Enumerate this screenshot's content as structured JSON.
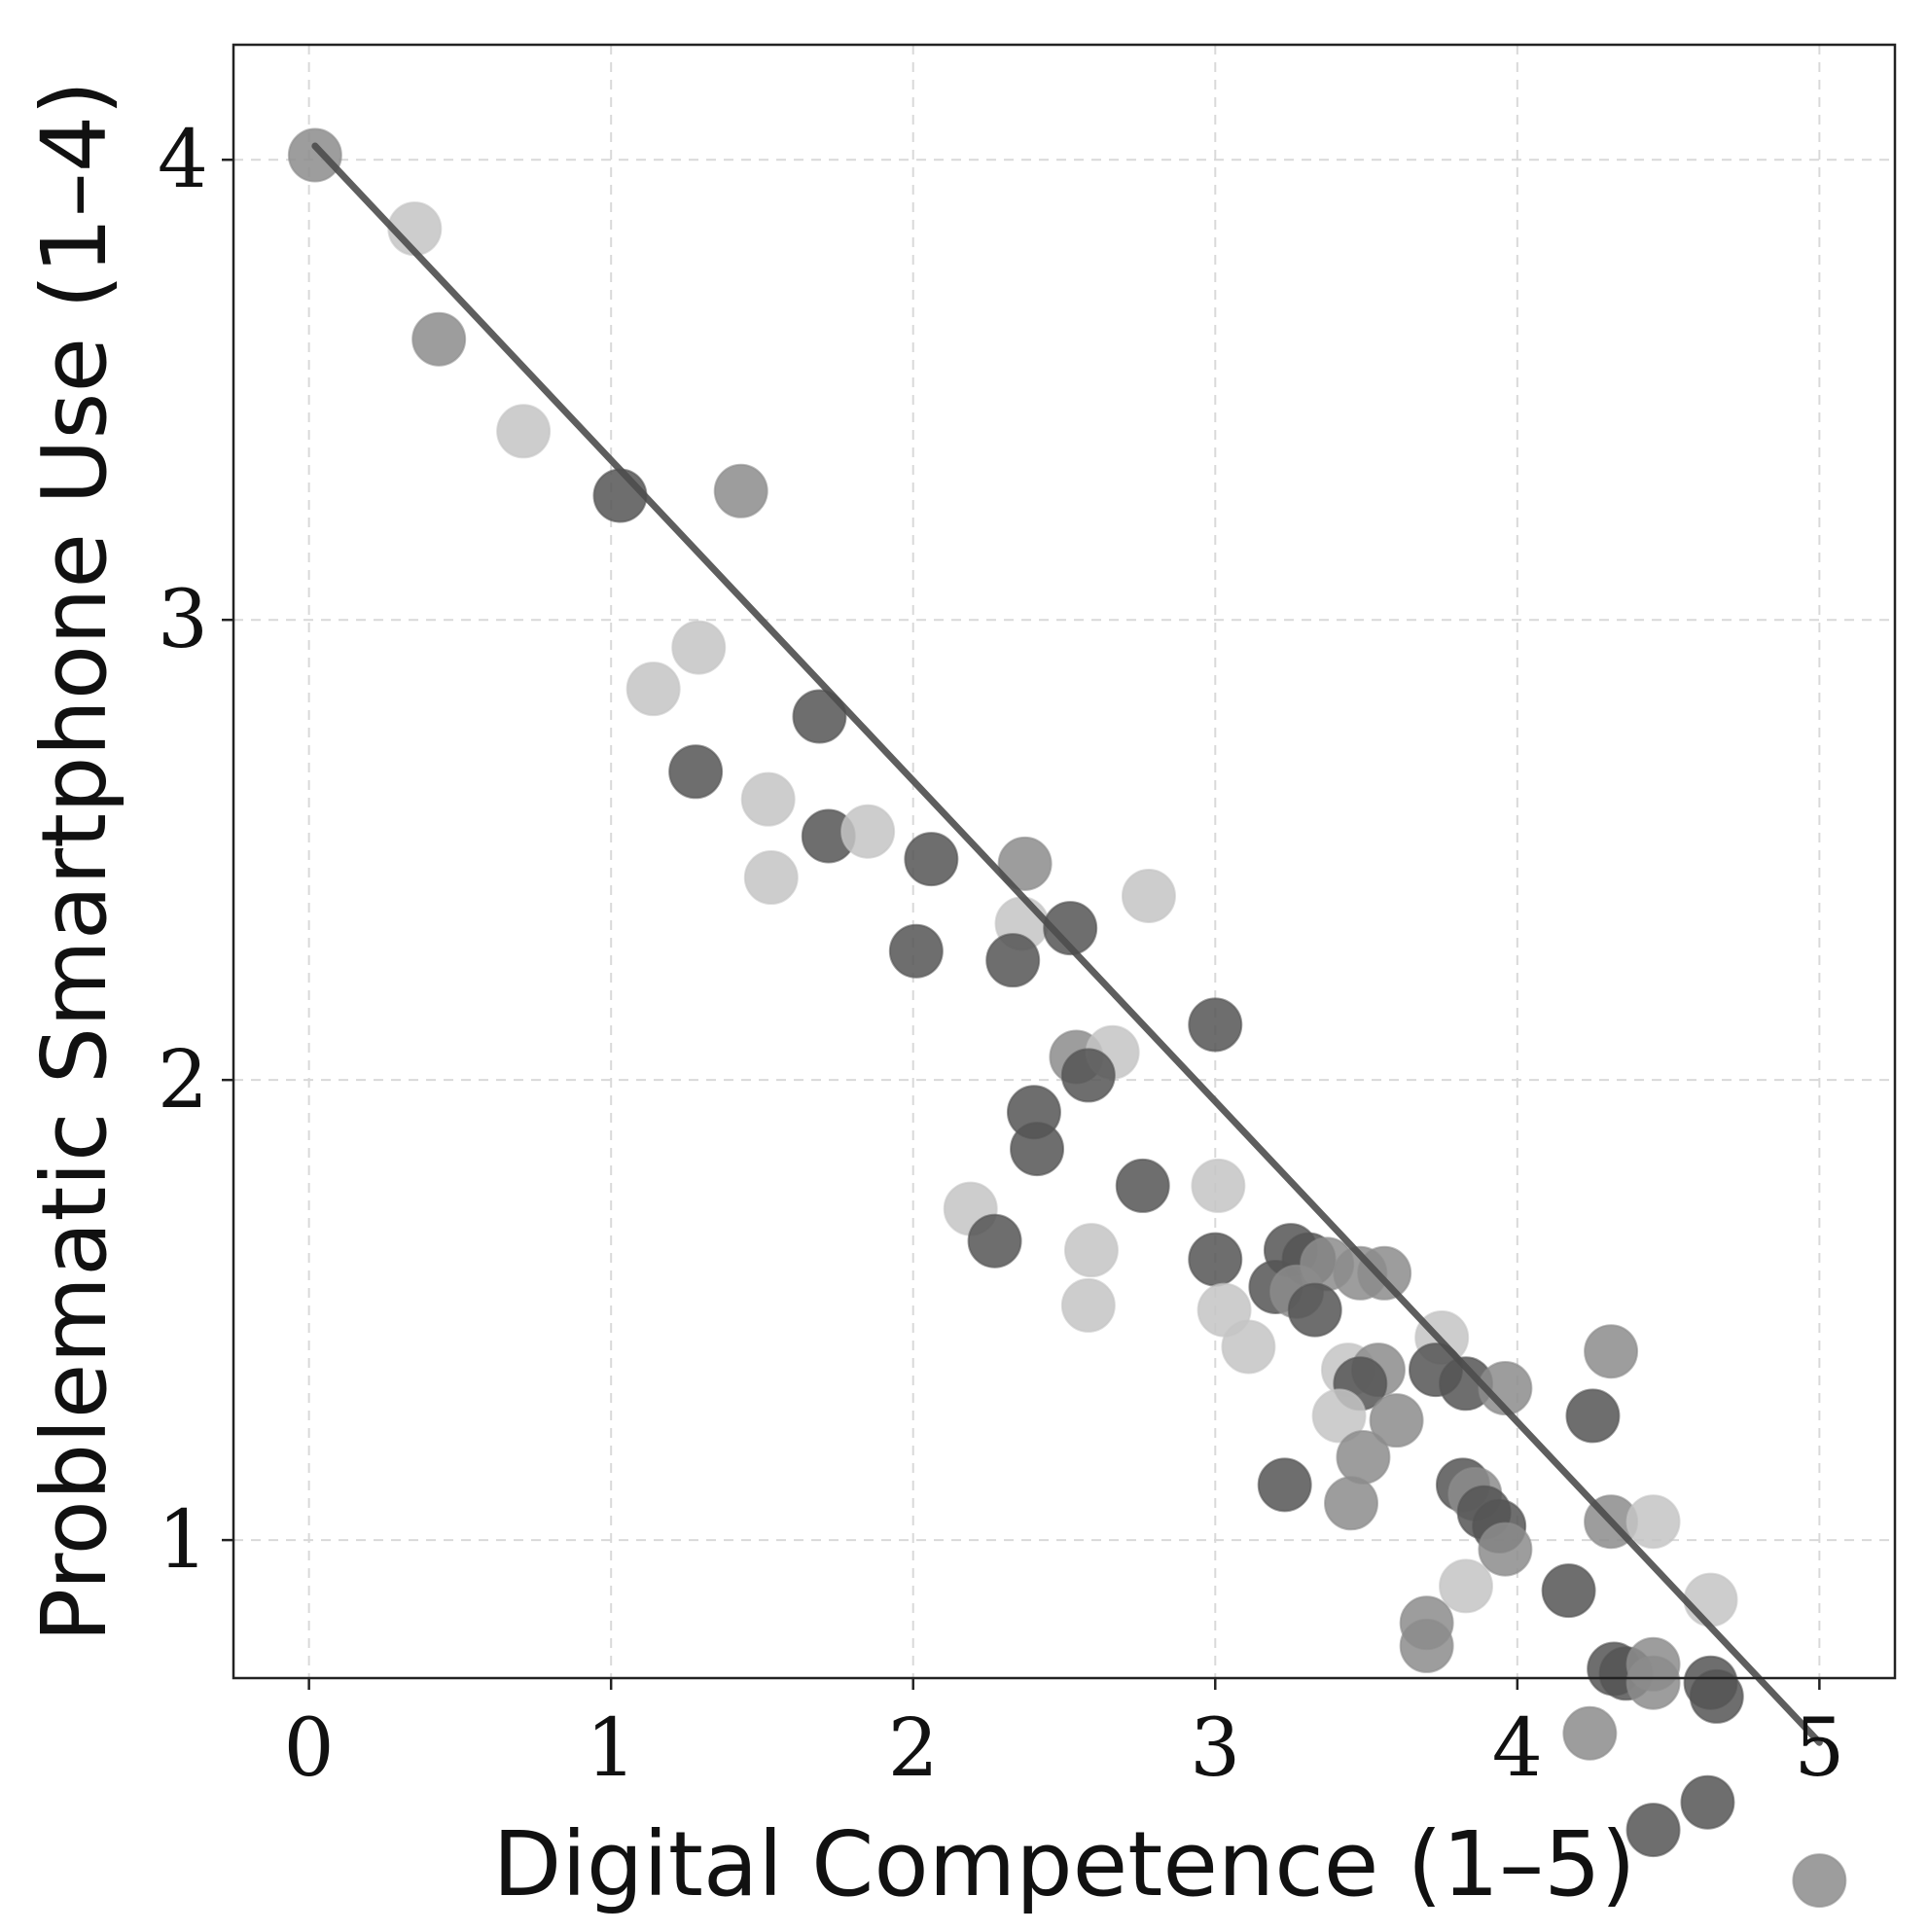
{
  "chart_data": {
    "type": "scatter",
    "title": "",
    "xlabel": "Digital Competence (1–5)",
    "ylabel": "Problematic Smartphone Use (1–4)",
    "xlim": [
      -0.25,
      5.25
    ],
    "ylim": [
      0.7,
      4.25
    ],
    "x_ticks": [
      {
        "value": 0,
        "label": "0"
      },
      {
        "value": 1,
        "label": "1"
      },
      {
        "value": 2,
        "label": "2"
      },
      {
        "value": 3,
        "label": "3"
      },
      {
        "value": 4,
        "label": "4"
      },
      {
        "value": 5,
        "label": "5"
      }
    ],
    "y_ticks": [
      {
        "value": 1,
        "label": "1"
      },
      {
        "value": 2,
        "label": "2"
      },
      {
        "value": 3,
        "label": "3"
      },
      {
        "value": 4,
        "label": "4"
      }
    ],
    "grid": true,
    "colors": {
      "dark": "#555555",
      "mid": "#8c8c8c",
      "light": "#c4c4c4",
      "trend": "#4d4d4d",
      "grid": "#d9d9d9",
      "frame": "#222222"
    },
    "trend_line": {
      "x": [
        0.02,
        5.0
      ],
      "y": [
        4.03,
        0.56
      ]
    },
    "points": [
      {
        "x": 0.02,
        "y": 4.01,
        "shade": "mid"
      },
      {
        "x": 0.35,
        "y": 3.85,
        "shade": "light"
      },
      {
        "x": 0.43,
        "y": 3.61,
        "shade": "mid"
      },
      {
        "x": 0.71,
        "y": 3.41,
        "shade": "light"
      },
      {
        "x": 1.03,
        "y": 3.27,
        "shade": "dark"
      },
      {
        "x": 1.43,
        "y": 3.28,
        "shade": "mid"
      },
      {
        "x": 1.29,
        "y": 2.94,
        "shade": "light"
      },
      {
        "x": 1.14,
        "y": 2.85,
        "shade": "light"
      },
      {
        "x": 1.69,
        "y": 2.79,
        "shade": "dark"
      },
      {
        "x": 1.28,
        "y": 2.67,
        "shade": "dark"
      },
      {
        "x": 1.52,
        "y": 2.61,
        "shade": "light"
      },
      {
        "x": 1.72,
        "y": 2.53,
        "shade": "dark"
      },
      {
        "x": 1.85,
        "y": 2.54,
        "shade": "light"
      },
      {
        "x": 1.53,
        "y": 2.44,
        "shade": "light"
      },
      {
        "x": 2.06,
        "y": 2.48,
        "shade": "dark"
      },
      {
        "x": 2.37,
        "y": 2.47,
        "shade": "mid"
      },
      {
        "x": 2.36,
        "y": 2.34,
        "shade": "light"
      },
      {
        "x": 2.52,
        "y": 2.33,
        "shade": "dark"
      },
      {
        "x": 2.78,
        "y": 2.4,
        "shade": "light"
      },
      {
        "x": 2.01,
        "y": 2.28,
        "shade": "dark"
      },
      {
        "x": 2.33,
        "y": 2.26,
        "shade": "dark"
      },
      {
        "x": 2.54,
        "y": 2.05,
        "shade": "mid"
      },
      {
        "x": 2.66,
        "y": 2.06,
        "shade": "light"
      },
      {
        "x": 2.58,
        "y": 2.01,
        "shade": "dark"
      },
      {
        "x": 3.0,
        "y": 2.12,
        "shade": "dark"
      },
      {
        "x": 2.4,
        "y": 1.93,
        "shade": "dark"
      },
      {
        "x": 2.41,
        "y": 1.85,
        "shade": "dark"
      },
      {
        "x": 2.76,
        "y": 1.77,
        "shade": "dark"
      },
      {
        "x": 3.01,
        "y": 1.77,
        "shade": "light"
      },
      {
        "x": 2.19,
        "y": 1.72,
        "shade": "light"
      },
      {
        "x": 2.27,
        "y": 1.65,
        "shade": "dark"
      },
      {
        "x": 2.59,
        "y": 1.63,
        "shade": "light"
      },
      {
        "x": 3.0,
        "y": 1.61,
        "shade": "dark"
      },
      {
        "x": 3.25,
        "y": 1.63,
        "shade": "dark"
      },
      {
        "x": 3.31,
        "y": 1.61,
        "shade": "dark"
      },
      {
        "x": 3.37,
        "y": 1.6,
        "shade": "mid"
      },
      {
        "x": 3.48,
        "y": 1.58,
        "shade": "mid"
      },
      {
        "x": 3.56,
        "y": 1.58,
        "shade": "mid"
      },
      {
        "x": 3.2,
        "y": 1.55,
        "shade": "dark"
      },
      {
        "x": 3.27,
        "y": 1.54,
        "shade": "mid"
      },
      {
        "x": 3.33,
        "y": 1.5,
        "shade": "dark"
      },
      {
        "x": 2.58,
        "y": 1.51,
        "shade": "light"
      },
      {
        "x": 3.03,
        "y": 1.5,
        "shade": "light"
      },
      {
        "x": 3.11,
        "y": 1.42,
        "shade": "light"
      },
      {
        "x": 3.75,
        "y": 1.44,
        "shade": "light"
      },
      {
        "x": 4.31,
        "y": 1.41,
        "shade": "mid"
      },
      {
        "x": 3.44,
        "y": 1.37,
        "shade": "light"
      },
      {
        "x": 3.54,
        "y": 1.37,
        "shade": "mid"
      },
      {
        "x": 3.48,
        "y": 1.34,
        "shade": "dark"
      },
      {
        "x": 3.73,
        "y": 1.37,
        "shade": "dark"
      },
      {
        "x": 3.83,
        "y": 1.34,
        "shade": "dark"
      },
      {
        "x": 3.96,
        "y": 1.33,
        "shade": "mid"
      },
      {
        "x": 3.41,
        "y": 1.27,
        "shade": "light"
      },
      {
        "x": 3.6,
        "y": 1.26,
        "shade": "mid"
      },
      {
        "x": 4.25,
        "y": 1.27,
        "shade": "dark"
      },
      {
        "x": 3.49,
        "y": 1.18,
        "shade": "mid"
      },
      {
        "x": 3.23,
        "y": 1.12,
        "shade": "dark"
      },
      {
        "x": 3.45,
        "y": 1.08,
        "shade": "mid"
      },
      {
        "x": 3.82,
        "y": 1.12,
        "shade": "dark"
      },
      {
        "x": 3.86,
        "y": 1.1,
        "shade": "mid"
      },
      {
        "x": 3.89,
        "y": 1.06,
        "shade": "dark"
      },
      {
        "x": 3.94,
        "y": 1.03,
        "shade": "dark"
      },
      {
        "x": 3.96,
        "y": 0.98,
        "shade": "mid"
      },
      {
        "x": 4.31,
        "y": 1.04,
        "shade": "mid"
      },
      {
        "x": 4.45,
        "y": 1.04,
        "shade": "light"
      },
      {
        "x": 3.83,
        "y": 0.9,
        "shade": "light"
      },
      {
        "x": 4.17,
        "y": 0.89,
        "shade": "dark"
      },
      {
        "x": 4.64,
        "y": 0.87,
        "shade": "light"
      },
      {
        "x": 3.7,
        "y": 0.82,
        "shade": "mid"
      },
      {
        "x": 3.7,
        "y": 0.77,
        "shade": "mid"
      },
      {
        "x": 4.32,
        "y": 0.72,
        "shade": "dark"
      },
      {
        "x": 4.36,
        "y": 0.71,
        "shade": "dark"
      },
      {
        "x": 4.45,
        "y": 0.73,
        "shade": "mid"
      },
      {
        "x": 4.45,
        "y": 0.69,
        "shade": "mid"
      },
      {
        "x": 4.64,
        "y": 0.69,
        "shade": "dark"
      },
      {
        "x": 4.66,
        "y": 0.66,
        "shade": "dark"
      },
      {
        "x": 4.24,
        "y": 0.58,
        "shade": "mid"
      },
      {
        "x": 4.63,
        "y": 0.43,
        "shade": "dark"
      },
      {
        "x": 4.45,
        "y": 0.37,
        "shade": "dark"
      },
      {
        "x": 5.0,
        "y": 0.26,
        "shade": "mid"
      }
    ]
  }
}
